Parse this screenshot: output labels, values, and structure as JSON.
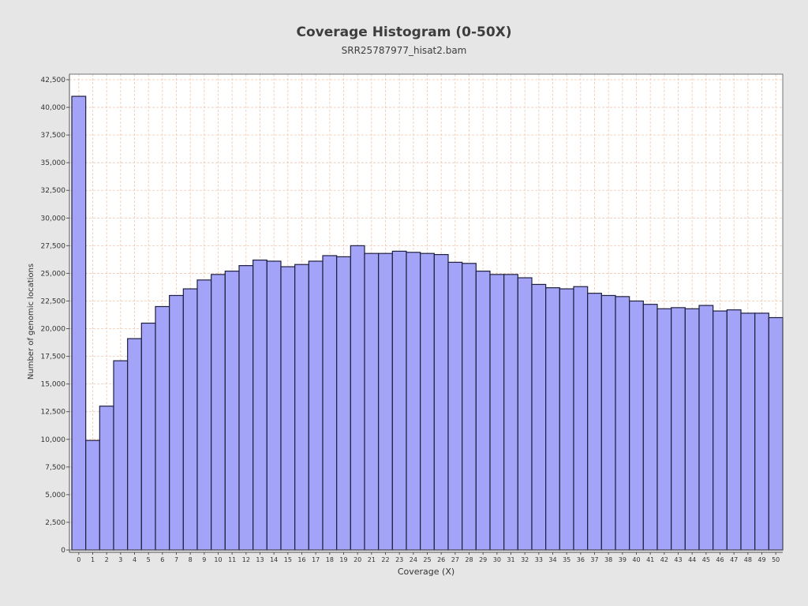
{
  "chart_data": {
    "type": "bar",
    "title": "Coverage Histogram (0-50X)",
    "subtitle": "SRR25787977_hisat2.bam",
    "xlabel": "Coverage (X)",
    "ylabel": "Number of genomic locations",
    "ylim": [
      0,
      43000
    ],
    "yticks": [
      0,
      2500,
      5000,
      7500,
      10000,
      12500,
      15000,
      17500,
      20000,
      22500,
      25000,
      27500,
      30000,
      32500,
      35000,
      37500,
      40000,
      42500
    ],
    "categories": [
      "0",
      "1",
      "2",
      "3",
      "4",
      "5",
      "6",
      "7",
      "8",
      "9",
      "10",
      "11",
      "12",
      "13",
      "14",
      "15",
      "16",
      "17",
      "18",
      "19",
      "20",
      "21",
      "22",
      "23",
      "24",
      "25",
      "26",
      "27",
      "28",
      "29",
      "30",
      "31",
      "32",
      "33",
      "34",
      "35",
      "36",
      "37",
      "38",
      "39",
      "40",
      "41",
      "42",
      "43",
      "44",
      "45",
      "46",
      "47",
      "48",
      "49",
      "50"
    ],
    "values": [
      41000,
      9900,
      13000,
      17100,
      19100,
      20500,
      22000,
      23000,
      23600,
      24400,
      24900,
      25200,
      25700,
      26200,
      26100,
      25600,
      25800,
      26100,
      26600,
      26500,
      27500,
      26800,
      26800,
      27000,
      26900,
      26800,
      26700,
      26000,
      25900,
      25200,
      24900,
      24900,
      24600,
      24000,
      23700,
      23600,
      23800,
      23200,
      23000,
      22900,
      22500,
      22200,
      21800,
      21900,
      21800,
      22100,
      21600,
      21700,
      21400,
      21400,
      21000
    ],
    "grid": true,
    "colors": {
      "bar_fill": "#a3a3f7",
      "bar_stroke": "#1f1f3f",
      "grid": "#f0c8b0",
      "plot_bg": "#ffffff",
      "page_bg": "#e6e6e6"
    }
  }
}
